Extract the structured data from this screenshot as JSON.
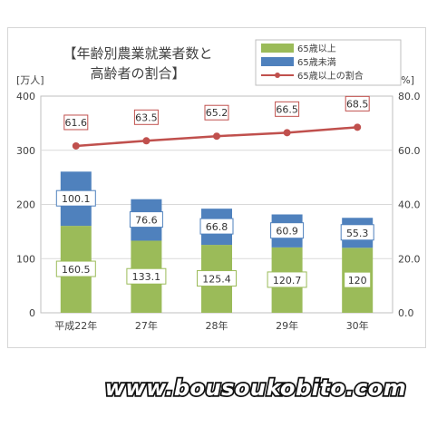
{
  "chart_data": {
    "type": "bar",
    "title_line1": "【年齢別農業就業者数と",
    "title_line2": "高齢者の割合】",
    "y_left_unit": "[万人]",
    "y_right_unit": "[%]",
    "categories": [
      "平成22年",
      "27年",
      "28年",
      "29年",
      "30年"
    ],
    "ylim_left": [
      0,
      400
    ],
    "ylim_right": [
      0,
      80
    ],
    "left_ticks": [
      "0",
      "100",
      "200",
      "300",
      "400"
    ],
    "right_ticks": [
      "0.0",
      "20.0",
      "40.0",
      "60.0",
      "80.0"
    ],
    "series": [
      {
        "name": "65歳以上",
        "type": "bar",
        "color": "#9bbb59",
        "values": [
          160.5,
          133.1,
          125.4,
          120.7,
          120
        ]
      },
      {
        "name": "65歳未満",
        "type": "bar",
        "color": "#4f81bd",
        "values": [
          100.1,
          76.6,
          66.8,
          60.9,
          55.3
        ]
      },
      {
        "name": "65歳以上の割合",
        "type": "line",
        "axis": "right",
        "color": "#c0504d",
        "values": [
          61.6,
          63.5,
          65.2,
          66.5,
          68.5
        ]
      }
    ],
    "line_labels": [
      "61.6",
      "63.5",
      "65.2",
      "66.5",
      "68.5"
    ],
    "grid": true,
    "legend_position": "top-right"
  },
  "watermark": {
    "text": "www.bousoukobito.com"
  }
}
